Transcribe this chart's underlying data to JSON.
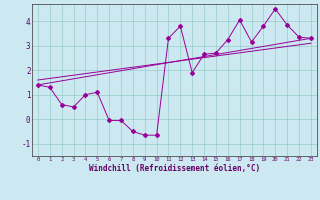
{
  "xlabel": "Windchill (Refroidissement éolien,°C)",
  "bg_color": "#cce8f0",
  "line_color": "#990099",
  "grid_color": "#99cccc",
  "xlim": [
    -0.5,
    23.5
  ],
  "ylim": [
    -1.5,
    4.7
  ],
  "xticks": [
    0,
    1,
    2,
    3,
    4,
    5,
    6,
    7,
    8,
    9,
    10,
    11,
    12,
    13,
    14,
    15,
    16,
    17,
    18,
    19,
    20,
    21,
    22,
    23
  ],
  "yticks": [
    -1,
    0,
    1,
    2,
    3,
    4
  ],
  "series1_x": [
    0,
    1,
    2,
    3,
    4,
    5,
    6,
    7,
    8,
    9,
    10,
    11,
    12,
    13,
    14,
    15,
    16,
    17,
    18,
    19,
    20,
    21,
    22,
    23
  ],
  "series1_y": [
    1.4,
    1.3,
    0.6,
    0.5,
    1.0,
    1.1,
    -0.05,
    -0.05,
    -0.5,
    -0.65,
    -0.65,
    3.3,
    3.8,
    1.9,
    2.65,
    2.7,
    3.25,
    4.05,
    3.15,
    3.8,
    4.5,
    3.85,
    3.35,
    3.3
  ],
  "trend1_x": [
    0,
    23
  ],
  "trend1_y": [
    1.4,
    3.3
  ],
  "trend2_x": [
    0,
    23
  ],
  "trend2_y": [
    1.6,
    3.1
  ]
}
